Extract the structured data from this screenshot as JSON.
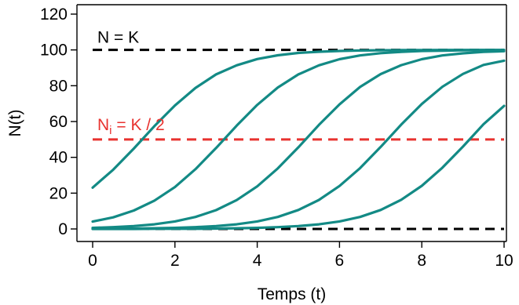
{
  "chart_data": {
    "type": "line",
    "title": "",
    "xlabel": "Temps (t)",
    "ylabel": "N(t)",
    "xlim": [
      0,
      10
    ],
    "ylim": [
      0,
      120
    ],
    "xticks": [
      "0",
      "2",
      "4",
      "6",
      "8",
      "10"
    ],
    "yticks": [
      "0",
      "20",
      "40",
      "60",
      "80",
      "100",
      "120"
    ],
    "grid": false,
    "legend": "none",
    "curve_color": "#138a85",
    "x": [
      0,
      0.5,
      1,
      1.5,
      2,
      2.5,
      3,
      3.5,
      4,
      4.5,
      5,
      5.5,
      6,
      6.5,
      7,
      7.5,
      8,
      8.5,
      9,
      9.5,
      10
    ],
    "series": [
      {
        "values": [
          23.1,
          33.1,
          44.9,
          57.4,
          69.0,
          78.8,
          86.3,
          91.4,
          94.9,
          97.0,
          98.3,
          99.0,
          99.4,
          99.7,
          99.8,
          99.9,
          99.9,
          100.0,
          100.0,
          100.0,
          100.0
        ]
      },
      {
        "values": [
          4.1,
          6.5,
          10.3,
          15.8,
          23.4,
          33.4,
          45.2,
          57.7,
          69.3,
          79.0,
          86.3,
          91.4,
          94.8,
          96.9,
          98.2,
          98.9,
          99.4,
          99.6,
          99.8,
          99.9,
          99.9
        ]
      },
      {
        "values": [
          0.6,
          1.0,
          1.6,
          2.6,
          4.2,
          6.7,
          10.5,
          16.1,
          23.8,
          33.8,
          45.6,
          58.1,
          69.6,
          79.3,
          86.5,
          91.5,
          94.8,
          96.9,
          98.1,
          98.9,
          99.3
        ]
      },
      {
        "values": [
          0.1,
          0.1,
          0.2,
          0.4,
          0.6,
          1.0,
          1.6,
          2.6,
          4.2,
          6.7,
          10.6,
          16.2,
          24.0,
          34.0,
          45.8,
          58.3,
          69.8,
          79.4,
          86.6,
          91.6,
          94.0
        ]
      },
      {
        "values": [
          0.0,
          0.0,
          0.0,
          0.1,
          0.1,
          0.1,
          0.2,
          0.4,
          0.6,
          1.0,
          1.6,
          2.6,
          4.2,
          6.7,
          10.6,
          16.3,
          24.1,
          34.2,
          46.0,
          58.5,
          68.7
        ]
      }
    ],
    "reference_lines": [
      {
        "y": 100,
        "color": "#000000"
      },
      {
        "y": 50,
        "color": "#e8322f"
      },
      {
        "y": 0,
        "color": "#000000"
      }
    ],
    "annotations": [
      {
        "text": "N = K",
        "at_y": 100,
        "color": "#000000"
      },
      {
        "main": "N",
        "sub": "i",
        "rest": " = K / 2",
        "at_y": 50,
        "color": "#e8322f"
      }
    ]
  }
}
